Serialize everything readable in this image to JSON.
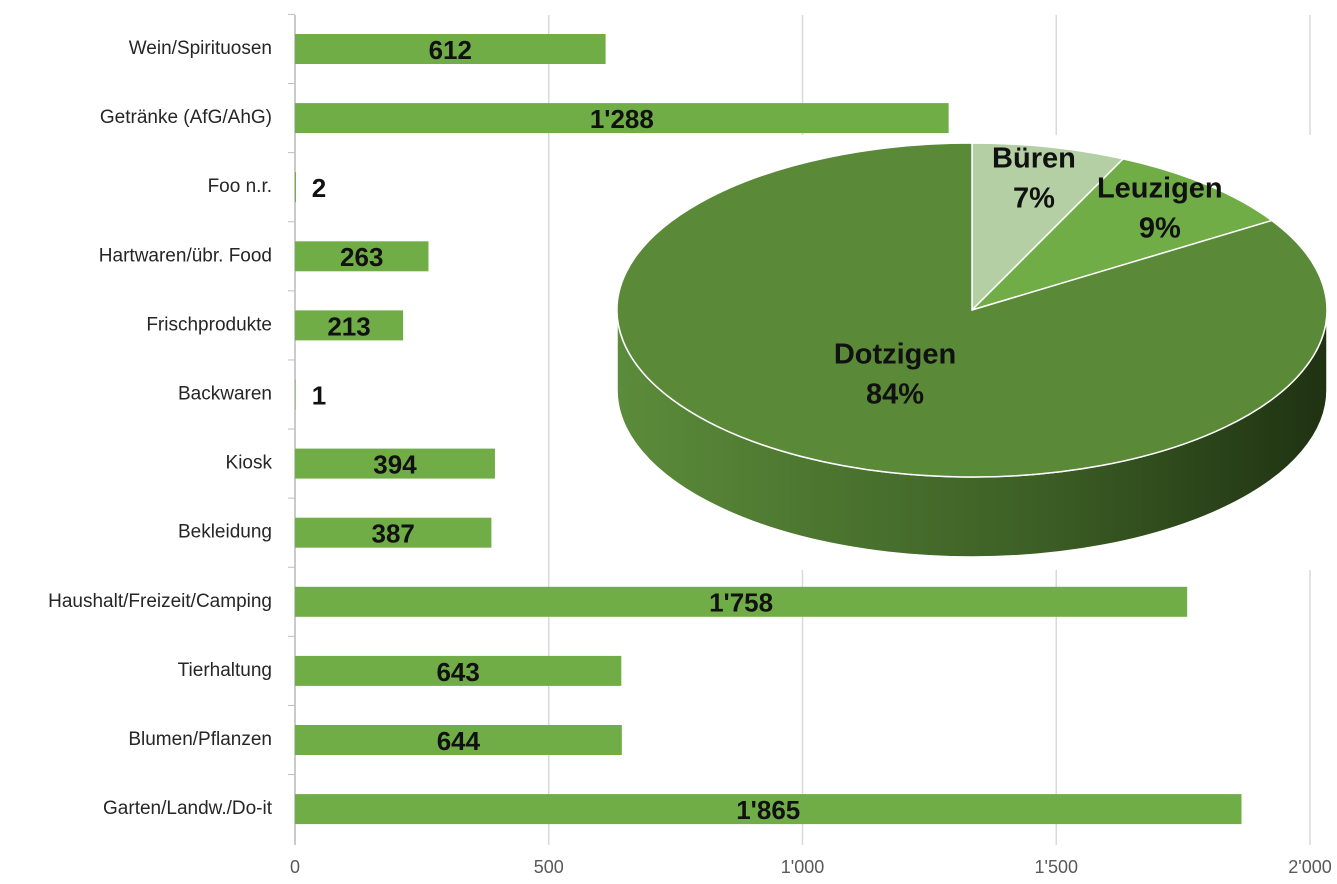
{
  "chart_data": [
    {
      "type": "barh",
      "categories": [
        "Wein/Spirituosen",
        "Getränke (AfG/AhG)",
        "Foo n.r.",
        "Hartwaren/übr. Food",
        "Frischprodukte",
        "Backwaren",
        "Kiosk",
        "Bekleidung",
        "Haushalt/Freizeit/Camping",
        "Tierhaltung",
        "Blumen/Pflanzen",
        "Garten/Landw./Do-it"
      ],
      "values": [
        612,
        1288,
        2,
        263,
        213,
        1,
        394,
        387,
        1758,
        643,
        644,
        1865
      ],
      "value_labels": [
        "612",
        "1'288",
        "2",
        "263",
        "213",
        "1",
        "394",
        "387",
        "1'758",
        "643",
        "644",
        "1'865"
      ],
      "color": "#70ad47",
      "xlim": [
        0,
        2000
      ],
      "xticks": [
        0,
        500,
        {
          "value": 1000,
          "label": "1'000"
        },
        {
          "value": 1500,
          "label": "1'500"
        },
        {
          "value": 2000,
          "label": "2'000"
        }
      ],
      "grid": true
    },
    {
      "type": "pie3d",
      "categories": [
        "Büren",
        "Leuzigen",
        "Dotzigen"
      ],
      "values": [
        7,
        9,
        84
      ],
      "value_labels": [
        "7%",
        "9%",
        "84%"
      ],
      "colors": [
        "#b4cfa3",
        "#70ad47",
        "#5a8a38"
      ]
    }
  ]
}
